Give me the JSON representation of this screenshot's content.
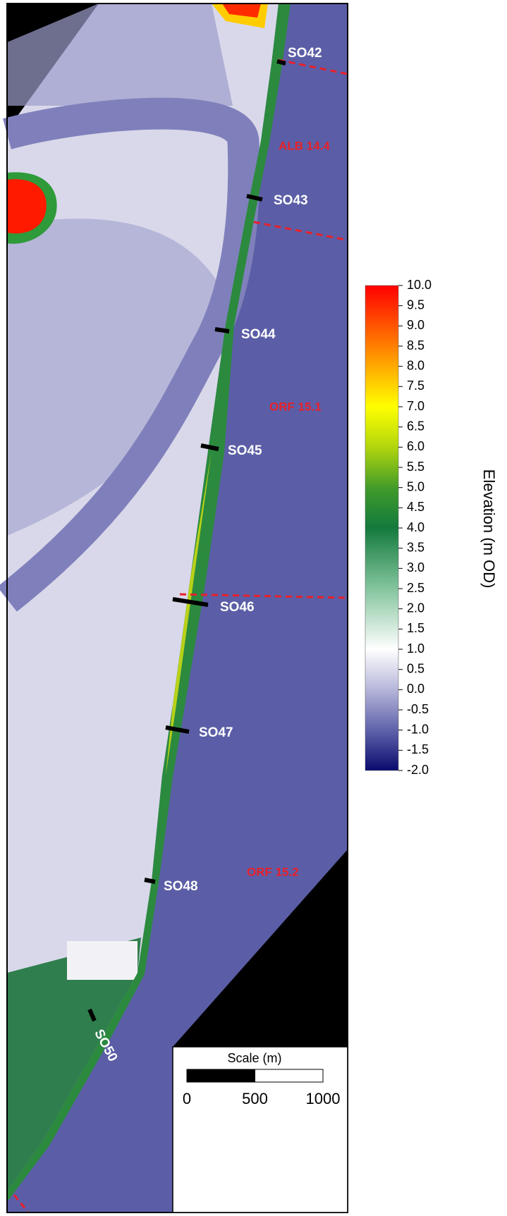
{
  "map": {
    "profiles": [
      {
        "label": "SO42"
      },
      {
        "label": "SO43"
      },
      {
        "label": "SO44"
      },
      {
        "label": "SO45"
      },
      {
        "label": "SO46"
      },
      {
        "label": "SO47"
      },
      {
        "label": "SO48"
      },
      {
        "label": "SO50"
      }
    ],
    "units": [
      "ALB 14.4",
      "ORF 15.1",
      "ORF 15.2"
    ],
    "colorbar": {
      "title": "Elevation (m OD)",
      "lim": [
        -2,
        10
      ],
      "ticks": [
        {
          "value": 10,
          "label": "10.0"
        },
        {
          "value": 9.5,
          "label": "9.5"
        },
        {
          "value": 9,
          "label": "9.0"
        },
        {
          "value": 8.5,
          "label": "8.5"
        },
        {
          "value": 8,
          "label": "8.0"
        },
        {
          "value": 7.5,
          "label": "7.5"
        },
        {
          "value": 7,
          "label": "7.0"
        },
        {
          "value": 6.5,
          "label": "6.5"
        },
        {
          "value": 6,
          "label": "6.0"
        },
        {
          "value": 5.5,
          "label": "5.5"
        },
        {
          "value": 5,
          "label": "5.0"
        },
        {
          "value": 4.5,
          "label": "4.5"
        },
        {
          "value": 4,
          "label": "4.0"
        },
        {
          "value": 3.5,
          "label": "3.5"
        },
        {
          "value": 3,
          "label": "3.0"
        },
        {
          "value": 2.5,
          "label": "2.5"
        },
        {
          "value": 2,
          "label": "2.0"
        },
        {
          "value": 1.5,
          "label": "1.5"
        },
        {
          "value": 1,
          "label": "1.0"
        },
        {
          "value": 0.5,
          "label": "0.5"
        },
        {
          "value": 0,
          "label": "0.0"
        },
        {
          "value": -0.5,
          "label": "-0.5"
        },
        {
          "value": -1,
          "label": "-1.0"
        },
        {
          "value": -1.5,
          "label": "-1.5"
        },
        {
          "value": -2,
          "label": "-2.0"
        }
      ]
    },
    "scale": {
      "title": "Scale (m)",
      "ticks": [
        0,
        500,
        1000
      ]
    }
  }
}
